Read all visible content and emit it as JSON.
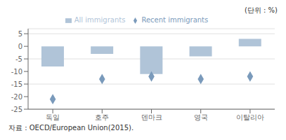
{
  "chart_data": {
    "type": "bar",
    "categories": [
      "독일",
      "호주",
      "덴마크",
      "영국",
      "이탈리아"
    ],
    "series": [
      {
        "name": "All immigrants",
        "type": "bar",
        "color": "#b0c4d8",
        "values": [
          -8,
          -3,
          -11,
          -4,
          3
        ]
      },
      {
        "name": "Recent immigrants",
        "type": "scatter",
        "marker": "diamond",
        "color": "#7a9abb",
        "values": [
          -21,
          -13,
          -12,
          -13,
          -12
        ]
      }
    ],
    "ylim": [
      -25,
      7
    ],
    "yticks": [
      5,
      0,
      -5,
      -10,
      -15,
      -20,
      -25
    ],
    "grid": true,
    "legend": "top",
    "annotations": [
      "(단위 : %)",
      "자료 : OECD/European Union(2015)."
    ]
  }
}
